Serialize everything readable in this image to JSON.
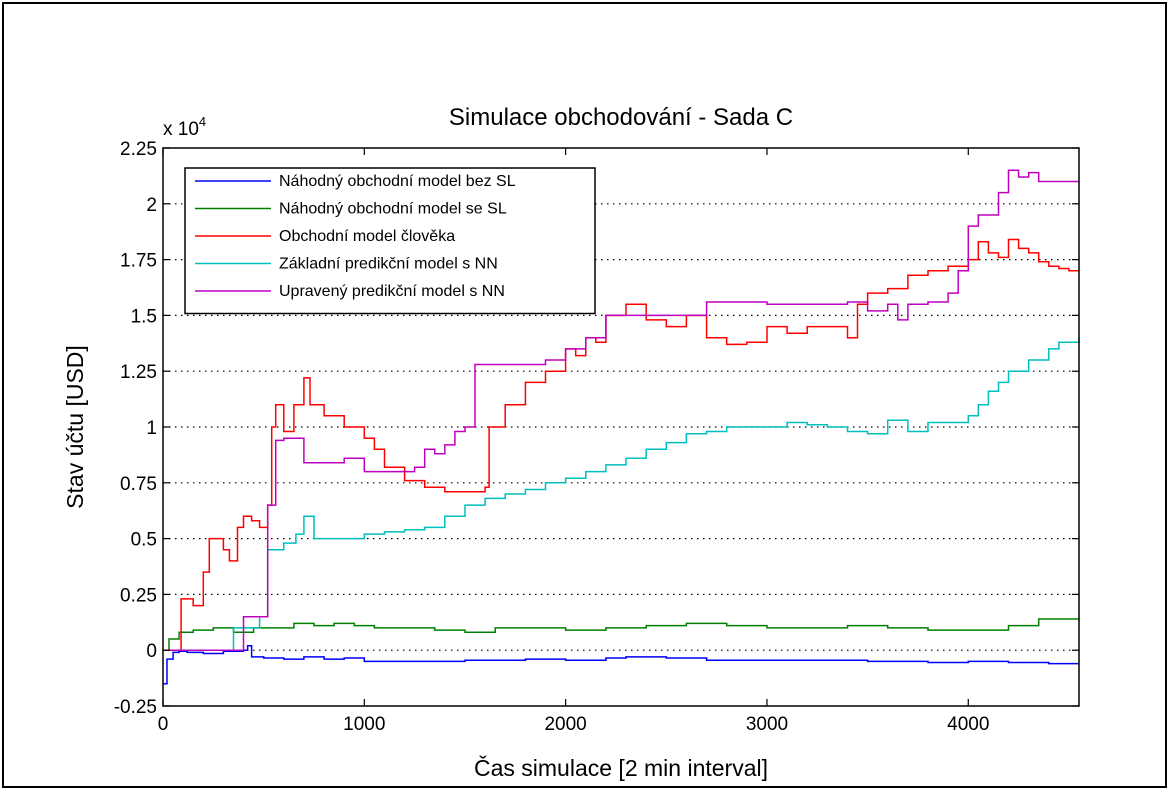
{
  "chart_data": {
    "type": "line",
    "title": "Simulace obchodování - Sada C",
    "xlabel": "Čas simulace [2 min interval]",
    "ylabel": "Stav účtu [USD]",
    "y_multiplier": "x 10",
    "y_multiplier_exp": "4",
    "xlim": [
      0,
      4550
    ],
    "ylim": [
      -0.25,
      2.25
    ],
    "grid": "horizontal dotted",
    "legend_position": "top-left",
    "x_ticks": [
      {
        "value": 0,
        "label": "0"
      },
      {
        "value": 1000,
        "label": "1000"
      },
      {
        "value": 2000,
        "label": "2000"
      },
      {
        "value": 3000,
        "label": "3000"
      },
      {
        "value": 4000,
        "label": "4000"
      }
    ],
    "y_ticks": [
      {
        "value": -0.25,
        "label": "-0.25"
      },
      {
        "value": 0,
        "label": "0"
      },
      {
        "value": 0.25,
        "label": "0.25"
      },
      {
        "value": 0.5,
        "label": "0.5"
      },
      {
        "value": 0.75,
        "label": "0.75"
      },
      {
        "value": 1,
        "label": "1"
      },
      {
        "value": 1.25,
        "label": "1.25"
      },
      {
        "value": 1.5,
        "label": "1.5"
      },
      {
        "value": 1.75,
        "label": "1.75"
      },
      {
        "value": 2,
        "label": "2"
      },
      {
        "value": 2.25,
        "label": "2.25"
      }
    ],
    "series": [
      {
        "name": "Náhodný obchodní model bez SL",
        "color": "#0000ff",
        "x": [
          0,
          20,
          50,
          80,
          120,
          200,
          300,
          400,
          420,
          440,
          470,
          500,
          600,
          700,
          800,
          900,
          1000,
          1200,
          1500,
          1800,
          2000,
          2200,
          2300,
          2500,
          2700,
          3000,
          3300,
          3500,
          3800,
          4000,
          4200,
          4400,
          4550
        ],
        "y": [
          -0.15,
          -0.04,
          -0.01,
          -0.005,
          -0.01,
          -0.015,
          -0.005,
          0.0,
          0.02,
          -0.03,
          -0.03,
          -0.035,
          -0.04,
          -0.03,
          -0.04,
          -0.035,
          -0.05,
          -0.05,
          -0.045,
          -0.04,
          -0.045,
          -0.035,
          -0.03,
          -0.035,
          -0.045,
          -0.045,
          -0.045,
          -0.05,
          -0.055,
          -0.05,
          -0.055,
          -0.06,
          -0.06
        ]
      },
      {
        "name": "Náhodný obchodní model se SL",
        "color": "#008000",
        "x": [
          0,
          30,
          80,
          150,
          250,
          350,
          450,
          550,
          650,
          750,
          850,
          950,
          1050,
          1200,
          1350,
          1500,
          1650,
          1800,
          2000,
          2200,
          2400,
          2600,
          2800,
          3000,
          3200,
          3400,
          3600,
          3800,
          4000,
          4200,
          4350,
          4550
        ],
        "y": [
          0.0,
          0.05,
          0.08,
          0.09,
          0.1,
          0.08,
          0.1,
          0.1,
          0.12,
          0.11,
          0.12,
          0.11,
          0.1,
          0.1,
          0.09,
          0.08,
          0.1,
          0.1,
          0.09,
          0.1,
          0.11,
          0.12,
          0.11,
          0.1,
          0.1,
          0.11,
          0.1,
          0.09,
          0.09,
          0.11,
          0.14,
          0.14
        ]
      },
      {
        "name": "Obchodní model člověka",
        "color": "#ff0000",
        "x": [
          0,
          90,
          150,
          200,
          230,
          300,
          330,
          370,
          400,
          440,
          480,
          520,
          540,
          560,
          600,
          650,
          700,
          730,
          800,
          900,
          1000,
          1050,
          1100,
          1200,
          1300,
          1400,
          1500,
          1600,
          1620,
          1700,
          1800,
          1900,
          2000,
          2050,
          2100,
          2150,
          2200,
          2300,
          2400,
          2500,
          2600,
          2700,
          2800,
          2900,
          3000,
          3100,
          3200,
          3300,
          3400,
          3450,
          3500,
          3600,
          3700,
          3800,
          3900,
          4000,
          4050,
          4100,
          4150,
          4200,
          4250,
          4300,
          4350,
          4400,
          4450,
          4500,
          4550
        ],
        "y": [
          0.0,
          0.23,
          0.2,
          0.35,
          0.5,
          0.45,
          0.4,
          0.55,
          0.6,
          0.58,
          0.55,
          0.65,
          1.0,
          1.1,
          0.98,
          1.1,
          1.22,
          1.1,
          1.05,
          1.0,
          0.95,
          0.9,
          0.82,
          0.76,
          0.73,
          0.71,
          0.71,
          0.73,
          1.0,
          1.1,
          1.2,
          1.25,
          1.35,
          1.32,
          1.4,
          1.38,
          1.5,
          1.55,
          1.48,
          1.45,
          1.5,
          1.4,
          1.37,
          1.38,
          1.45,
          1.42,
          1.45,
          1.45,
          1.4,
          1.55,
          1.6,
          1.62,
          1.68,
          1.7,
          1.72,
          1.75,
          1.83,
          1.78,
          1.76,
          1.84,
          1.8,
          1.78,
          1.74,
          1.72,
          1.71,
          1.7,
          1.7
        ]
      },
      {
        "name": "Základní predikční model s NN",
        "color": "#00bfbf",
        "x": [
          0,
          300,
          350,
          480,
          520,
          560,
          600,
          660,
          700,
          750,
          900,
          1000,
          1100,
          1200,
          1300,
          1400,
          1500,
          1600,
          1700,
          1800,
          1900,
          2000,
          2100,
          2200,
          2300,
          2400,
          2500,
          2600,
          2700,
          2800,
          2900,
          3000,
          3100,
          3200,
          3300,
          3400,
          3500,
          3600,
          3700,
          3800,
          3900,
          4000,
          4050,
          4100,
          4150,
          4200,
          4300,
          4400,
          4450,
          4550
        ],
        "y": [
          0.0,
          0.0,
          0.1,
          0.15,
          0.45,
          0.45,
          0.48,
          0.52,
          0.6,
          0.5,
          0.5,
          0.52,
          0.53,
          0.54,
          0.55,
          0.6,
          0.65,
          0.68,
          0.7,
          0.72,
          0.75,
          0.77,
          0.8,
          0.83,
          0.86,
          0.9,
          0.93,
          0.97,
          0.98,
          1.0,
          1.0,
          1.0,
          1.02,
          1.01,
          1.0,
          0.98,
          0.97,
          1.03,
          0.98,
          1.02,
          1.02,
          1.05,
          1.1,
          1.16,
          1.2,
          1.25,
          1.3,
          1.35,
          1.38,
          1.4
        ]
      },
      {
        "name": "Upravený predikční model s NN",
        "color": "#bf00bf",
        "x": [
          0,
          380,
          400,
          500,
          520,
          560,
          600,
          680,
          700,
          800,
          900,
          1000,
          1100,
          1200,
          1250,
          1300,
          1350,
          1400,
          1450,
          1500,
          1550,
          1600,
          1700,
          1800,
          1900,
          2000,
          2100,
          2200,
          2300,
          2400,
          2500,
          2600,
          2700,
          2800,
          2900,
          3000,
          3100,
          3200,
          3300,
          3400,
          3500,
          3600,
          3650,
          3700,
          3800,
          3900,
          3950,
          4000,
          4050,
          4100,
          4150,
          4200,
          4250,
          4300,
          4350,
          4400,
          4450,
          4500,
          4550
        ],
        "y": [
          0.0,
          0.0,
          0.15,
          0.15,
          0.65,
          0.94,
          0.95,
          0.95,
          0.84,
          0.84,
          0.86,
          0.8,
          0.8,
          0.8,
          0.82,
          0.9,
          0.88,
          0.92,
          0.98,
          1.0,
          1.28,
          1.28,
          1.28,
          1.28,
          1.3,
          1.35,
          1.4,
          1.5,
          1.5,
          1.5,
          1.5,
          1.5,
          1.56,
          1.56,
          1.56,
          1.55,
          1.55,
          1.55,
          1.55,
          1.56,
          1.52,
          1.55,
          1.48,
          1.55,
          1.56,
          1.6,
          1.7,
          1.9,
          1.95,
          1.95,
          2.05,
          2.15,
          2.12,
          2.14,
          2.1,
          2.1,
          2.1,
          2.1,
          2.1
        ]
      }
    ]
  }
}
